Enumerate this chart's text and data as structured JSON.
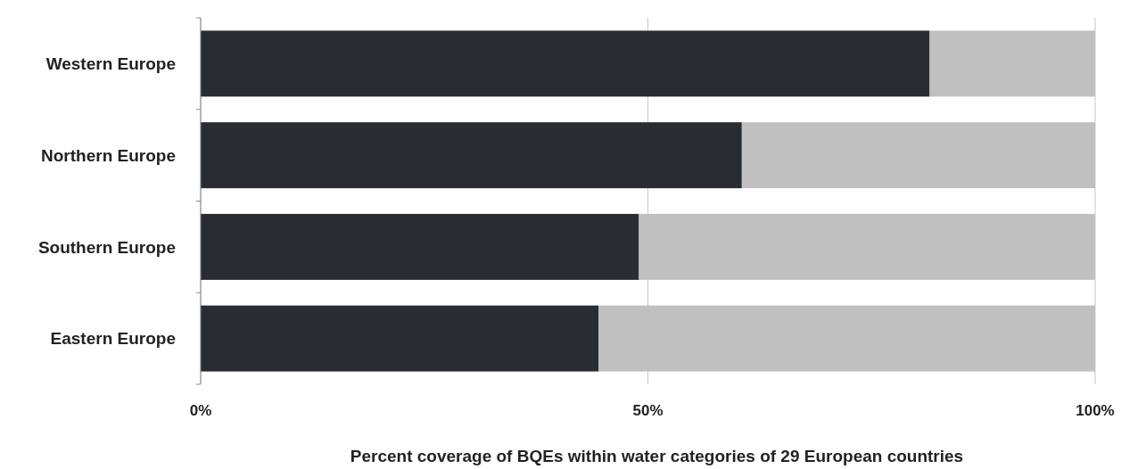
{
  "chart_data": {
    "type": "bar",
    "orientation": "horizontal",
    "stacked": true,
    "xlabel": "Percent coverage of BQEs within water categories of 29 European countries",
    "categories": [
      "Western Europe",
      "Northern Europe",
      "Southern Europe",
      "Eastern Europe"
    ],
    "series": [
      {
        "color": "#2a2c34",
        "values": [
          81.5,
          60.5,
          49,
          44.5
        ]
      },
      {
        "color": "#c0c0c0",
        "values": [
          18.5,
          39.5,
          51,
          55.5
        ]
      }
    ],
    "xlim": [
      0,
      100
    ],
    "xticks": [
      {
        "value": 0,
        "label": "0%"
      },
      {
        "value": 50,
        "label": "50%"
      },
      {
        "value": 100,
        "label": "100%"
      }
    ],
    "grid": "x"
  }
}
